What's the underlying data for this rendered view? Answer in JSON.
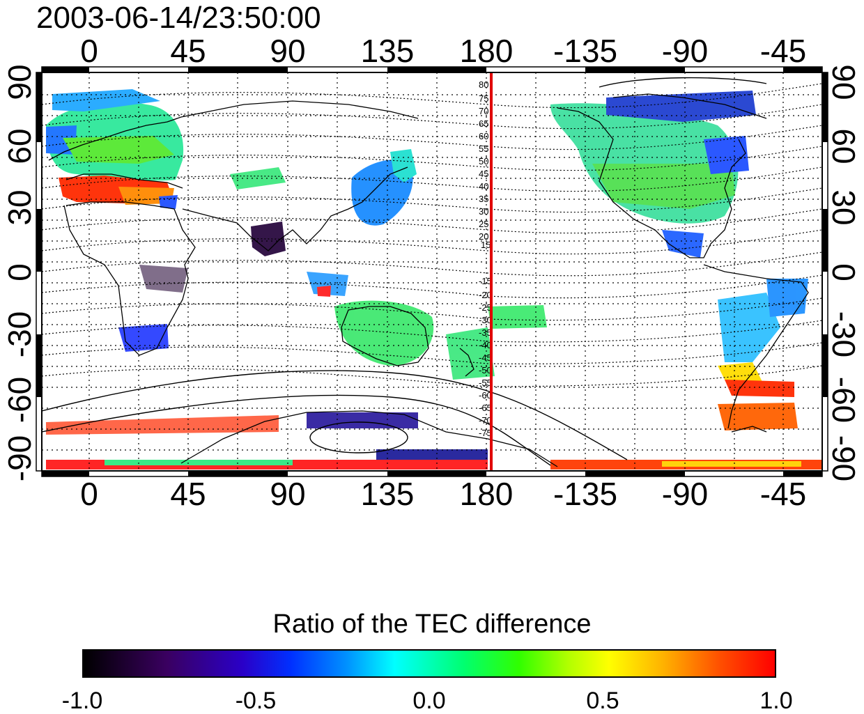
{
  "header": {
    "timestamp": "2003-06-14/23:50:00"
  },
  "map": {
    "projection": "cylindrical equidistant",
    "central_longitude": 180,
    "longitude_range": [
      -20,
      340
    ],
    "latitude_range": [
      -90,
      90
    ],
    "grid": "dotted",
    "coastlines": true,
    "geomagnetic_contours": true,
    "x_tick_labels": [
      "0",
      "45",
      "90",
      "135",
      "180",
      "-135",
      "-90",
      "-45"
    ],
    "y_tick_labels": [
      "90",
      "60",
      "30",
      "0",
      "-30",
      "-60",
      "-90"
    ],
    "meridian_line": {
      "longitude": 180,
      "color": "#e00000"
    },
    "contour_labels_north": [
      "80",
      "75",
      "70",
      "65",
      "60",
      "55",
      "50",
      "45",
      "40",
      "35",
      "30",
      "25",
      "20",
      "15"
    ],
    "contour_labels_south": [
      "-15",
      "-20",
      "-25",
      "-30",
      "-35",
      "-40",
      "-45",
      "-50",
      "-55",
      "-60",
      "-65",
      "-70",
      "-75"
    ]
  },
  "colorbar": {
    "title": "Ratio of the TEC difference",
    "range": [
      -1.0,
      1.0
    ],
    "tick_labels": [
      "-1.0",
      "-0.5",
      "0.0",
      "0.5",
      "1.0"
    ],
    "colors": [
      "#000000",
      "#2a00c8",
      "#0090ff",
      "#00ffff",
      "#30ff00",
      "#ffff00",
      "#ff5000",
      "#ff0000"
    ]
  }
}
